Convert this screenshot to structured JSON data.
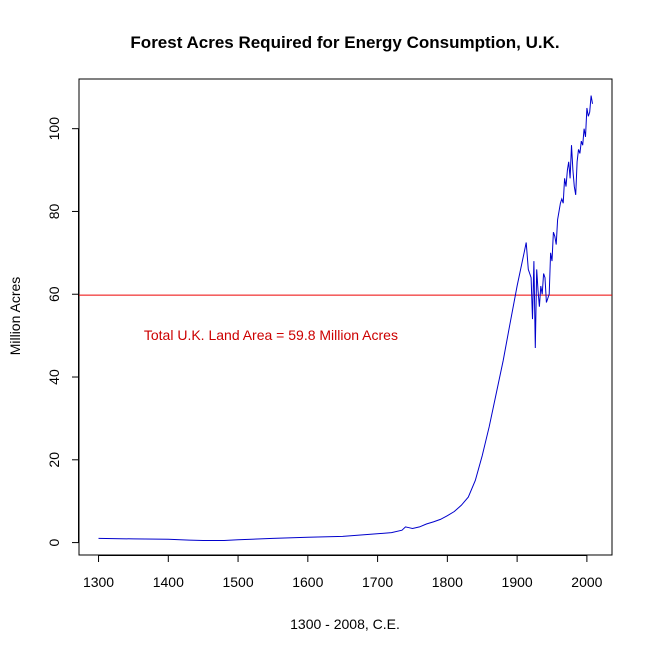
{
  "chart_data": {
    "type": "line",
    "title": "Forest Acres Required for Energy Consumption, U.K.",
    "xlabel": "1300 - 2008, C.E.",
    "ylabel": "Million Acres",
    "xlim": [
      1272,
      2036
    ],
    "ylim": [
      -3,
      112
    ],
    "xticks": [
      1300,
      1400,
      1500,
      1600,
      1700,
      1800,
      1900,
      2000
    ],
    "yticks": [
      0,
      20,
      40,
      60,
      80,
      100
    ],
    "grid": false,
    "legend": "none",
    "colors": {
      "series": "#0000cc",
      "reference": "#ee0000",
      "annotation": "#cc0000",
      "axis": "#000000"
    },
    "reference_line": {
      "y": 59.8,
      "label": "Total U.K. Land Area = 59.8 Million Acres"
    },
    "annotation_position": {
      "x": 1365,
      "y": 49
    },
    "series": [
      {
        "x": [
          1300,
          1350,
          1400,
          1430,
          1450,
          1480,
          1500,
          1550,
          1600,
          1650,
          1690,
          1720,
          1735,
          1740,
          1745,
          1750,
          1760,
          1770,
          1780,
          1790,
          1800,
          1810,
          1820,
          1830,
          1840,
          1850,
          1860,
          1870,
          1880,
          1890,
          1900,
          1910,
          1913,
          1916,
          1918,
          1920,
          1922,
          1924,
          1926,
          1928,
          1930,
          1932,
          1934,
          1936,
          1938,
          1940,
          1942,
          1944,
          1946,
          1948,
          1950,
          1952,
          1954,
          1956,
          1958,
          1960,
          1962,
          1964,
          1966,
          1968,
          1970,
          1972,
          1974,
          1976,
          1978,
          1980,
          1982,
          1984,
          1986,
          1988,
          1990,
          1992,
          1994,
          1996,
          1998,
          2000,
          2002,
          2004,
          2006,
          2008
        ],
        "values": [
          1.0,
          0.9,
          0.8,
          0.6,
          0.5,
          0.5,
          0.7,
          1.0,
          1.3,
          1.5,
          2.0,
          2.4,
          3.0,
          3.8,
          3.6,
          3.4,
          3.8,
          4.5,
          5.0,
          5.6,
          6.5,
          7.5,
          9.0,
          11.0,
          15.0,
          21.0,
          28.0,
          36.0,
          44.0,
          53.0,
          62.0,
          70.0,
          72.5,
          66.0,
          65.0,
          64.0,
          54.0,
          68.0,
          47.0,
          66.0,
          61.0,
          57.0,
          62.0,
          60.0,
          65.0,
          64.0,
          58.0,
          59.0,
          60.0,
          70.0,
          68.0,
          75.0,
          74.0,
          72.0,
          78.0,
          80.0,
          82.0,
          83.0,
          82.0,
          88.0,
          86.0,
          90.0,
          92.0,
          88.0,
          96.0,
          90.0,
          86.0,
          84.0,
          92.0,
          95.0,
          94.0,
          97.0,
          96.0,
          100.0,
          98.0,
          105.0,
          103.0,
          104.0,
          108.0,
          106.0
        ]
      }
    ]
  }
}
